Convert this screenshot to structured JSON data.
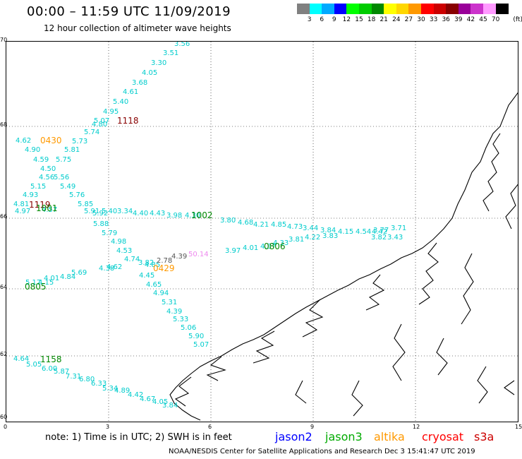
{
  "header": {
    "title": "00:00 – 11:59 UTC 11/09/2019",
    "subtitle": "12 hour collection of altimeter wave heights"
  },
  "colorbar": {
    "unit_label": "(ft)",
    "colors": [
      "#808080",
      "#00ffff",
      "#00aaff",
      "#0000ff",
      "#00ff00",
      "#00cc00",
      "#008800",
      "#ffff00",
      "#ffd700",
      "#ff9900",
      "#ff0000",
      "#cc0000",
      "#880000",
      "#990099",
      "#cc33cc",
      "#ff99ff",
      "#000000"
    ],
    "labels": [
      "3",
      "6",
      "9",
      "12",
      "15",
      "18",
      "21",
      "24",
      "27",
      "30",
      "33",
      "36",
      "39",
      "42",
      "45",
      "70"
    ]
  },
  "axes": {
    "x_ticks": [
      "0",
      "3",
      "6",
      "9",
      "12",
      "15"
    ],
    "y_ticks": [
      "70",
      "68",
      "66",
      "64",
      "62",
      "60"
    ]
  },
  "passes": [
    {
      "label": "1118",
      "color": "#880000"
    },
    {
      "label": "0430",
      "color": "#ff9900"
    },
    {
      "label": "1119",
      "color": "#880000"
    },
    {
      "label": "1001",
      "color": "#008800"
    },
    {
      "label": "1002",
      "color": "#008800"
    },
    {
      "label": "0806",
      "color": "#008800"
    },
    {
      "label": "0429",
      "color": "#ff9900"
    },
    {
      "label": "0805",
      "color": "#008800"
    },
    {
      "label": "1158",
      "color": "#008800"
    }
  ],
  "tracks": {
    "track_a": [
      "3.56",
      "3.51",
      "3.30",
      "4.05",
      "3.68",
      "4.61",
      "5.40",
      "4.95",
      "5.07",
      "4.80",
      "5.74",
      "5.73"
    ],
    "track_b": [
      "4.62",
      "4.90",
      "5.81",
      "4.59",
      "5.75",
      "4.50",
      "4.56",
      "5.56",
      "5.15",
      "5.49",
      "4.93",
      "5.76",
      "4.81",
      "5.85",
      "4.97",
      "5.91",
      "4.57",
      "5.92",
      "5.40",
      "3.34",
      "4.40",
      "4.43",
      "3.98",
      "4.30"
    ],
    "track_c": [
      "3.80",
      "4.68",
      "4.21",
      "4.85",
      "4.73",
      "3.44",
      "3.84",
      "4.15",
      "4.54",
      "4.42",
      "3.77",
      "3.71",
      "3.82",
      "3.43",
      "3.81",
      "4.33",
      "4.22",
      "3.83",
      "4.37",
      "4.01",
      "3.97"
    ],
    "track_d": [
      "5.88",
      "5.79",
      "4.98",
      "4.53",
      "4.74",
      "3.82",
      "4.85",
      "4.38",
      "4.62",
      "5.69",
      "4.84",
      "4.01",
      "5.17",
      "4.15",
      "4.45",
      "4.65",
      "4.94",
      "5.31",
      "4.39",
      "5.33",
      "5.06",
      "5.90",
      "5.07"
    ],
    "track_e": [
      "4.64",
      "5.05",
      "6.00",
      "5.87",
      "7.31",
      "6.80",
      "6.33",
      "5.34",
      "4.89",
      "4.42",
      "4.67",
      "4.05",
      "3.84"
    ],
    "altika_values": [
      "2.78",
      "4.39"
    ],
    "cryosat_values": [
      "50.14"
    ]
  },
  "footer": {
    "note": "note: 1) Time is in UTC; 2) SWH is in feet",
    "missions": [
      {
        "name": "jason2",
        "color": "#0000ff"
      },
      {
        "name": "jason3",
        "color": "#00aa00"
      },
      {
        "name": "altika",
        "color": "#ff9900"
      },
      {
        "name": "cryosat",
        "color": "#ff0000"
      },
      {
        "name": "s3a",
        "color": "#cc0000"
      }
    ],
    "credit": "NOAA/NESDIS Center for Satellite Applications and Research    Dec  3 15:41:47 UTC 2019"
  }
}
